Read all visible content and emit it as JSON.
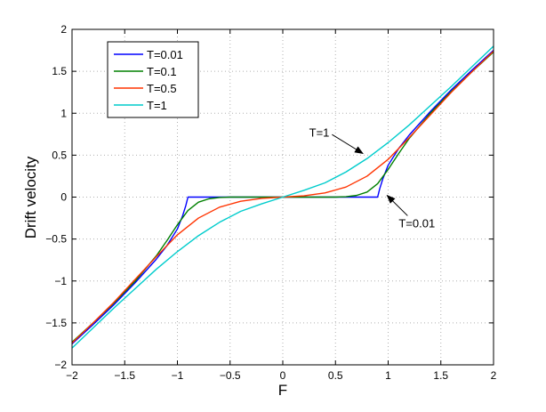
{
  "chart_data": {
    "type": "line",
    "title": "",
    "xlabel": "F",
    "ylabel": "Drift velocity",
    "xlim": [
      -2,
      2
    ],
    "ylim": [
      -2,
      2
    ],
    "xticks": [
      -2,
      -1.5,
      -1,
      -0.5,
      0,
      0.5,
      1,
      1.5,
      2
    ],
    "yticks": [
      -2,
      -1.5,
      -1,
      -0.5,
      0,
      0.5,
      1,
      1.5,
      2
    ],
    "x_tick_labels": [
      "−2",
      "−1.5",
      "−1",
      "−0.5",
      "0",
      "0.5",
      "1",
      "1.5",
      "2"
    ],
    "y_tick_labels": [
      "−2",
      "−1.5",
      "−1",
      "−0.5",
      "0",
      "0.5",
      "1",
      "1.5",
      "2"
    ],
    "grid": true,
    "legend_position": "top-left",
    "series": [
      {
        "name": "T=0.01",
        "color": "#0000ff",
        "x": [
          -2,
          -1.8,
          -1.6,
          -1.4,
          -1.2,
          -1.1,
          -1.0,
          -0.95,
          -0.92,
          -0.9,
          -0.5,
          0,
          0.5,
          0.9,
          0.92,
          0.95,
          1.0,
          1.1,
          1.2,
          1.4,
          1.6,
          1.8,
          2
        ],
        "y": [
          -1.75,
          -1.52,
          -1.28,
          -1.02,
          -0.74,
          -0.58,
          -0.38,
          -0.22,
          -0.1,
          0,
          0,
          0,
          0,
          0,
          0.1,
          0.22,
          0.38,
          0.58,
          0.74,
          1.02,
          1.28,
          1.52,
          1.75
        ]
      },
      {
        "name": "T=0.1",
        "color": "#008000",
        "x": [
          -2,
          -1.8,
          -1.6,
          -1.4,
          -1.2,
          -1.1,
          -1.0,
          -0.9,
          -0.8,
          -0.7,
          -0.6,
          -0.5,
          0,
          0.5,
          0.6,
          0.7,
          0.8,
          0.9,
          1.0,
          1.1,
          1.2,
          1.4,
          1.6,
          1.8,
          2
        ],
        "y": [
          -1.73,
          -1.5,
          -1.26,
          -1.0,
          -0.7,
          -0.52,
          -0.33,
          -0.16,
          -0.06,
          -0.02,
          -0.005,
          0,
          0,
          0,
          0.005,
          0.02,
          0.06,
          0.16,
          0.33,
          0.52,
          0.7,
          1.0,
          1.26,
          1.5,
          1.73
        ]
      },
      {
        "name": "T=0.5",
        "color": "#ff3300",
        "x": [
          -2,
          -1.8,
          -1.6,
          -1.4,
          -1.2,
          -1.0,
          -0.8,
          -0.6,
          -0.4,
          -0.2,
          0,
          0.2,
          0.4,
          0.6,
          0.8,
          1.0,
          1.2,
          1.4,
          1.6,
          1.8,
          2
        ],
        "y": [
          -1.74,
          -1.5,
          -1.25,
          -0.98,
          -0.71,
          -0.45,
          -0.25,
          -0.12,
          -0.05,
          -0.015,
          0,
          0.015,
          0.05,
          0.12,
          0.25,
          0.45,
          0.71,
          0.98,
          1.25,
          1.5,
          1.74
        ]
      },
      {
        "name": "T=1",
        "color": "#00cccc",
        "x": [
          -2,
          -1.8,
          -1.6,
          -1.4,
          -1.2,
          -1.0,
          -0.8,
          -0.6,
          -0.4,
          -0.2,
          0,
          0.2,
          0.4,
          0.6,
          0.8,
          1.0,
          1.2,
          1.4,
          1.6,
          1.8,
          2
        ],
        "y": [
          -1.8,
          -1.56,
          -1.32,
          -1.09,
          -0.86,
          -0.65,
          -0.46,
          -0.3,
          -0.17,
          -0.08,
          0,
          0.08,
          0.17,
          0.3,
          0.46,
          0.65,
          0.86,
          1.09,
          1.32,
          1.56,
          1.8
        ]
      }
    ],
    "annotations": [
      {
        "text": "T=1",
        "point": [
          0.76,
          0.52
        ],
        "text_at": [
          0.25,
          0.72
        ]
      },
      {
        "text": "T=0.01",
        "point": [
          0.99,
          0.02
        ],
        "text_at": [
          1.1,
          -0.36
        ]
      }
    ]
  }
}
